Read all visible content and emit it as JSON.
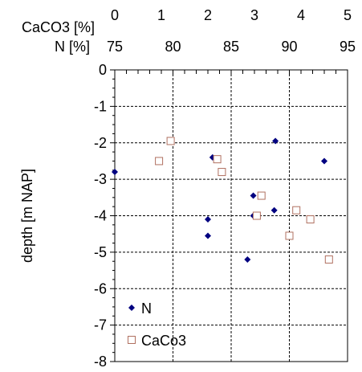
{
  "chart_data": {
    "type": "scatter",
    "ylabel": "depth [m NAP]",
    "ylim": [
      -8,
      0
    ],
    "yticks": [
      0,
      -1,
      -2,
      -3,
      -4,
      -5,
      -6,
      -7,
      -8
    ],
    "y_minor_step": 0.25,
    "grid": true,
    "legend": "bottom-left",
    "axes": {
      "CaCO3": {
        "label": "CaCO3 [%]",
        "range": [
          0,
          5
        ],
        "ticks": [
          0,
          1,
          2,
          3,
          4,
          5
        ],
        "minor_step": 0.2
      },
      "N": {
        "label": "N [%]",
        "range": [
          75,
          95
        ],
        "ticks": [
          75,
          80,
          85,
          90,
          95
        ],
        "minor_step": 1
      }
    },
    "series": [
      {
        "name": "N",
        "axis": "N",
        "marker": "diamond",
        "color": "#000080",
        "points": [
          {
            "x": 75.0,
            "y": -2.8
          },
          {
            "x": 88.8,
            "y": -1.95
          },
          {
            "x": 93.0,
            "y": -2.5
          },
          {
            "x": 83.4,
            "y": -2.4
          },
          {
            "x": 86.9,
            "y": -3.45
          },
          {
            "x": 86.9,
            "y": -4.0
          },
          {
            "x": 88.7,
            "y": -3.85
          },
          {
            "x": 83.0,
            "y": -4.1
          },
          {
            "x": 83.0,
            "y": -4.55
          },
          {
            "x": 86.4,
            "y": -5.2
          }
        ]
      },
      {
        "name": "CaCo3",
        "axis": "CaCO3",
        "marker": "square",
        "color": "#b07060",
        "points": [
          {
            "x": 1.2,
            "y": -1.95
          },
          {
            "x": 0.95,
            "y": -2.5
          },
          {
            "x": 2.2,
            "y": -2.45
          },
          {
            "x": 2.3,
            "y": -2.8
          },
          {
            "x": 3.15,
            "y": -3.45
          },
          {
            "x": 3.05,
            "y": -4.0
          },
          {
            "x": 3.9,
            "y": -3.85
          },
          {
            "x": 4.2,
            "y": -4.1
          },
          {
            "x": 3.75,
            "y": -4.55
          },
          {
            "x": 4.6,
            "y": -5.2
          }
        ]
      }
    ]
  }
}
